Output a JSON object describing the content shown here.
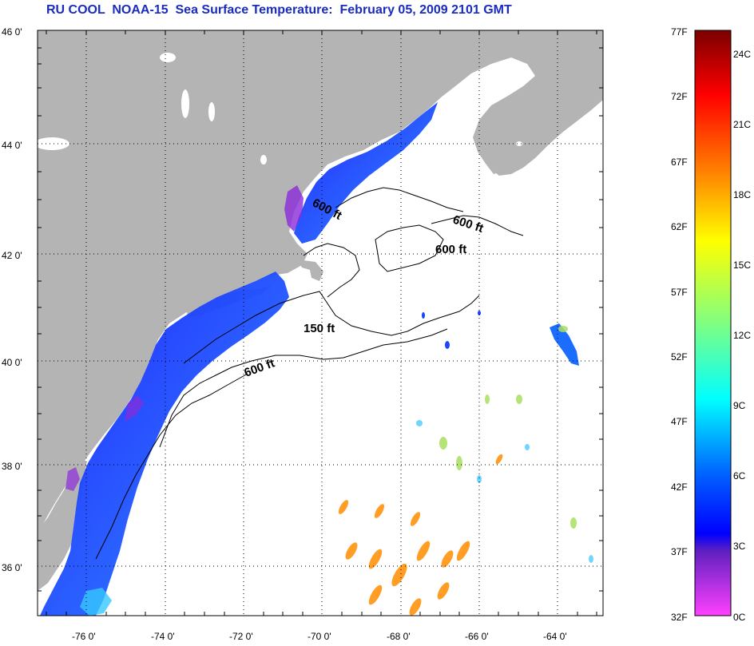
{
  "title": "RU COOL  NOAA-15  Sea Surface Temperature:  February 05, 2009 2101 GMT",
  "map": {
    "lat_labels": [
      "46 0'",
      "44 0'",
      "42 0'",
      "40 0'",
      "38 0'",
      "36 0'"
    ],
    "lon_labels": [
      "-76 0'",
      "-74 0'",
      "-72 0'",
      "-70 0'",
      "-68 0'",
      "-66 0'",
      "-64 0'"
    ],
    "contour_labels": [
      "600 ft",
      "600 ft",
      "600 ft",
      "150 ft",
      "600 ft"
    ],
    "colors": {
      "land": "#b4b4b4",
      "ocean": "#ffffff",
      "grid": "#000000"
    }
  },
  "colorbar": {
    "left_labels": [
      "77F",
      "72F",
      "67F",
      "62F",
      "57F",
      "52F",
      "47F",
      "42F",
      "37F",
      "32F"
    ],
    "right_labels": [
      "24C",
      "21C",
      "18C",
      "15C",
      "12C",
      "9C",
      "6C",
      "3C",
      "0C"
    ],
    "gradient_stops": [
      "#800000",
      "#ff0000",
      "#ff8000",
      "#ffff00",
      "#80ff80",
      "#00ffff",
      "#0080ff",
      "#0000ff",
      "#8000c0",
      "#ff40ff"
    ]
  }
}
